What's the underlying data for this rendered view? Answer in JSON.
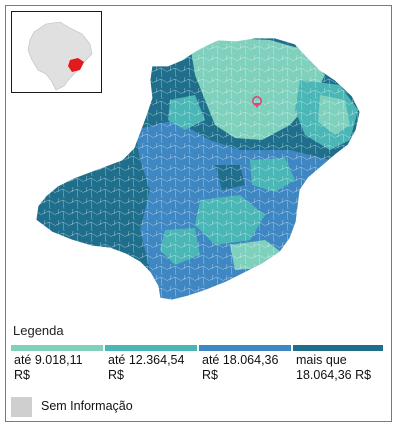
{
  "legend": {
    "title": "Legenda",
    "classes": [
      {
        "label": "até 9.018,11\nR$",
        "color": "#7fd1be"
      },
      {
        "label": "até 12.364,54\nR$",
        "color": "#4bb6b6"
      },
      {
        "label": "até 18.064,36\nR$",
        "color": "#3e87c2"
      },
      {
        "label": "mais que\n18.064,36 R$",
        "color": "#1f6f8c"
      }
    ],
    "no_info": {
      "label": "Sem Informação",
      "color": "#cfcfcf"
    }
  },
  "inset": {
    "country_color": "#e0e0e0",
    "highlight_color": "#e31a1c"
  },
  "marker": {
    "icon": "map-pin-icon",
    "color": "#e0457b"
  }
}
